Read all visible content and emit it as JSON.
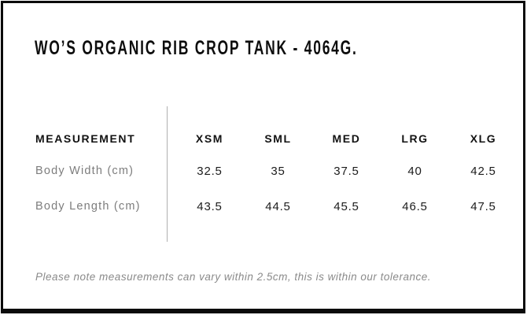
{
  "header": {
    "title": "WO’S ORGANIC RIB CROP TANK - 4064G."
  },
  "table": {
    "measurement_label": "MEASUREMENT",
    "columns": [
      "XSM",
      "SML",
      "MED",
      "LRG",
      "XLG"
    ],
    "rows": [
      {
        "label": "Body Width (cm)",
        "values": [
          "32.5",
          "35",
          "37.5",
          "40",
          "42.5"
        ]
      },
      {
        "label": "Body Length (cm)",
        "values": [
          "43.5",
          "44.5",
          "45.5",
          "46.5",
          "47.5"
        ]
      }
    ]
  },
  "footer": {
    "note": "Please note measurements can vary within 2.5cm, this is within our tolerance."
  },
  "colors": {
    "background": "#ffffff",
    "border": "#0b0b0b",
    "text_primary": "#0d0d0d",
    "row_label_gray": "#7d7d7d",
    "note_gray": "#8a8a8a",
    "divider_gray": "#b0b0b0"
  },
  "chart_data": {
    "type": "table",
    "title": "WO’S ORGANIC RIB CROP TANK - 4064G.",
    "columns": [
      "MEASUREMENT",
      "XSM",
      "SML",
      "MED",
      "LRG",
      "XLG"
    ],
    "rows": [
      [
        "Body Width (cm)",
        32.5,
        35,
        37.5,
        40,
        42.5
      ],
      [
        "Body Length (cm)",
        43.5,
        44.5,
        45.5,
        46.5,
        47.5
      ]
    ],
    "note": "Please note measurements can vary within 2.5cm, this is within our tolerance."
  }
}
